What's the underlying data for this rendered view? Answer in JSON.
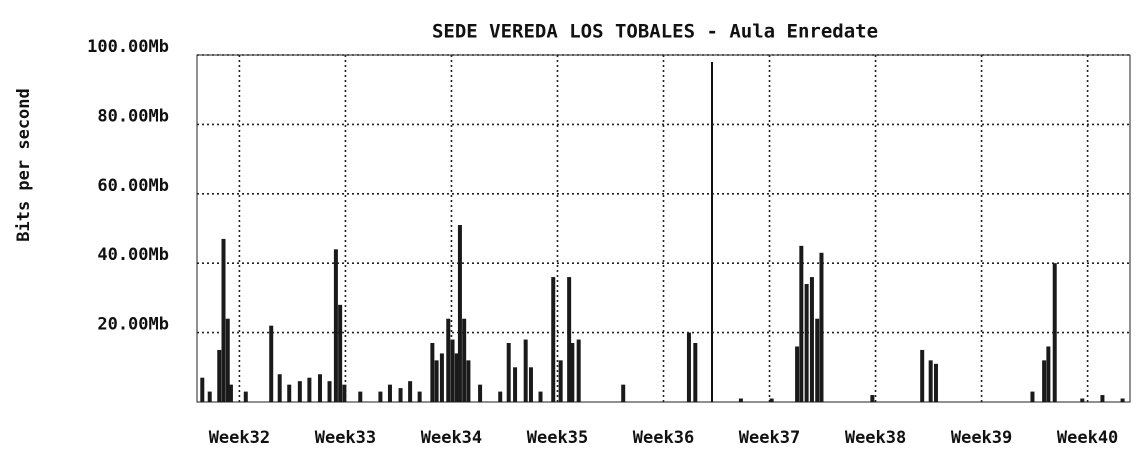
{
  "chart_data": {
    "type": "bar",
    "title": "SEDE VEREDA LOS TOBALES - Aula Enredate",
    "y_label": "Bits per second",
    "color": "#1a1a1a",
    "grid": true,
    "xlim": [
      31.6,
      40.4
    ],
    "xticks": [
      {
        "value": 32,
        "label": "Week32"
      },
      {
        "value": 33,
        "label": "Week33"
      },
      {
        "value": 34,
        "label": "Week34"
      },
      {
        "value": 35,
        "label": "Week35"
      },
      {
        "value": 36,
        "label": "Week36"
      },
      {
        "value": 37,
        "label": "Week37"
      },
      {
        "value": 38,
        "label": "Week38"
      },
      {
        "value": 39,
        "label": "Week39"
      },
      {
        "value": 40,
        "label": "Week40"
      }
    ],
    "ylim": [
      0,
      100
    ],
    "yticks": [
      {
        "value": 20,
        "label": "20.00Mb"
      },
      {
        "value": 40,
        "label": "40.00Mb"
      },
      {
        "value": 60,
        "label": "60.00Mb"
      },
      {
        "value": 80,
        "label": "80.00Mb"
      },
      {
        "value": 100,
        "label": "100.00Mb"
      }
    ],
    "x": [
      31.65,
      31.72,
      31.81,
      31.85,
      31.89,
      31.92,
      32.06,
      32.3,
      32.38,
      32.47,
      32.57,
      32.66,
      32.76,
      32.85,
      32.91,
      32.95,
      32.99,
      33.14,
      33.33,
      33.42,
      33.52,
      33.61,
      33.7,
      33.82,
      33.86,
      33.91,
      33.97,
      34.01,
      34.05,
      34.08,
      34.12,
      34.16,
      34.27,
      34.46,
      34.54,
      34.6,
      34.7,
      34.75,
      34.84,
      34.96,
      35.03,
      35.11,
      35.14,
      35.2,
      35.62,
      36.24,
      36.3,
      36.73,
      37.02,
      37.26,
      37.3,
      37.35,
      37.4,
      37.45,
      37.49,
      37.97,
      38.44,
      38.52,
      38.57,
      39.48,
      39.59,
      39.63,
      39.69,
      39.95,
      40.14,
      40.33
    ],
    "values": [
      7,
      3,
      15,
      47,
      24,
      5,
      3,
      22,
      8,
      5,
      6,
      7,
      8,
      6,
      44,
      28,
      5,
      3,
      3,
      5,
      4,
      6,
      3,
      17,
      12,
      14,
      24,
      18,
      14,
      51,
      24,
      12,
      5,
      3,
      17,
      10,
      18,
      10,
      3,
      36,
      12,
      36,
      17,
      18,
      5,
      20,
      17,
      1,
      1,
      16,
      45,
      34,
      36,
      24,
      43,
      2,
      15,
      12,
      11,
      3,
      12,
      16,
      40,
      1,
      2,
      1
    ]
  }
}
